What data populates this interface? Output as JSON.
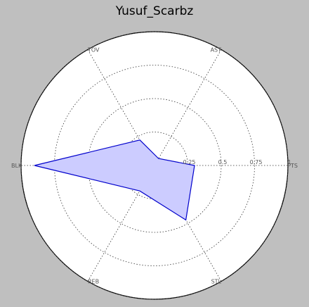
{
  "chart_data": {
    "type": "radar",
    "title": "Yusuf_Scarbz",
    "categories": [
      "PTS",
      "AST",
      "TOV",
      "BLK",
      "REB",
      "STL"
    ],
    "values": [
      0.3,
      0.06,
      0.22,
      0.9,
      0.22,
      0.47
    ],
    "rlim": [
      0,
      1
    ],
    "rticks": [
      0.25,
      0.5,
      0.75,
      1
    ],
    "rtick_labels": [
      "0.25",
      "0.5",
      "0.75",
      "1"
    ],
    "grid": true,
    "colors": {
      "line": "#0000cc",
      "fill": "#ccccff"
    }
  }
}
